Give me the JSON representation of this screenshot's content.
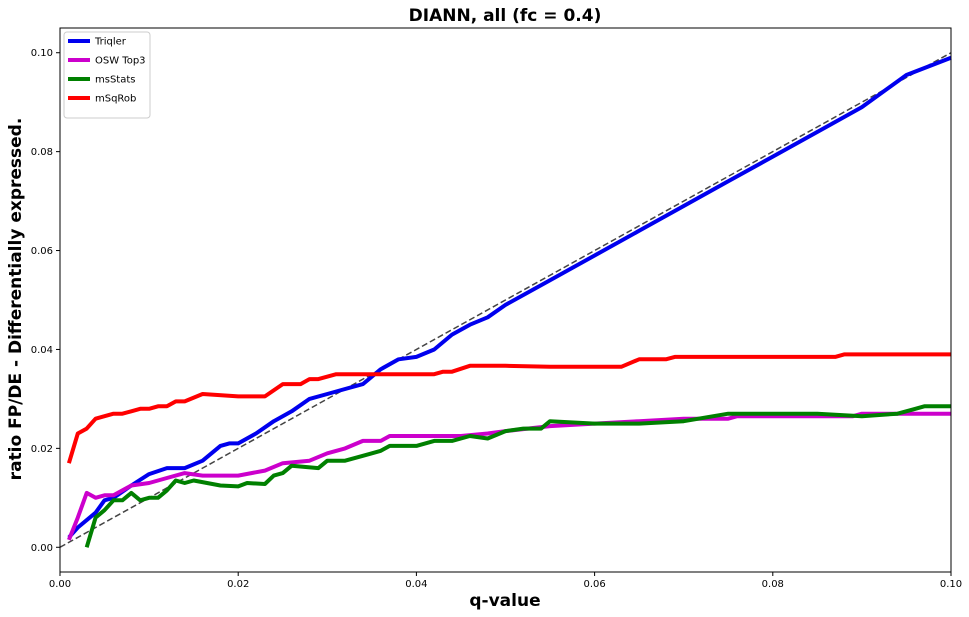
{
  "chart_data": {
    "type": "line",
    "title": "DIANN, all (fc = 0.4)",
    "xlabel": "q-value",
    "ylabel": "ratio FP/DE - Differentially expressed.",
    "xlim": [
      0.0,
      0.1
    ],
    "ylim": [
      -0.005,
      0.105
    ],
    "xticks": [
      "0.00",
      "0.02",
      "0.04",
      "0.06",
      "0.08",
      "0.10"
    ],
    "yticks": [
      "0.00",
      "0.02",
      "0.04",
      "0.06",
      "0.08",
      "0.10"
    ],
    "grid": false,
    "legend_position": "top-left",
    "diagonal": {
      "x": [
        0.0,
        0.1
      ],
      "y": [
        0.0,
        0.1
      ],
      "color": "#444444",
      "style": "dashed"
    },
    "series": [
      {
        "name": "Triqler",
        "color": "#0000ee",
        "x": [
          0.001,
          0.002,
          0.004,
          0.005,
          0.006,
          0.008,
          0.01,
          0.012,
          0.014,
          0.016,
          0.018,
          0.019,
          0.02,
          0.022,
          0.024,
          0.026,
          0.028,
          0.03,
          0.032,
          0.034,
          0.036,
          0.038,
          0.04,
          0.042,
          0.044,
          0.046,
          0.048,
          0.05,
          0.055,
          0.06,
          0.065,
          0.07,
          0.075,
          0.08,
          0.085,
          0.09,
          0.095,
          0.1
        ],
        "y": [
          0.002,
          0.004,
          0.007,
          0.0095,
          0.01,
          0.0125,
          0.0148,
          0.016,
          0.016,
          0.0175,
          0.0205,
          0.021,
          0.021,
          0.023,
          0.0255,
          0.0275,
          0.03,
          0.031,
          0.032,
          0.033,
          0.036,
          0.038,
          0.0385,
          0.04,
          0.043,
          0.045,
          0.0465,
          0.049,
          0.054,
          0.059,
          0.064,
          0.069,
          0.074,
          0.079,
          0.084,
          0.089,
          0.0955,
          0.099
        ]
      },
      {
        "name": "OSW Top3",
        "color": "#cc00cc",
        "x": [
          0.001,
          0.002,
          0.003,
          0.004,
          0.005,
          0.006,
          0.008,
          0.01,
          0.012,
          0.014,
          0.016,
          0.02,
          0.023,
          0.025,
          0.028,
          0.03,
          0.032,
          0.034,
          0.036,
          0.037,
          0.04,
          0.045,
          0.048,
          0.05,
          0.055,
          0.06,
          0.065,
          0.07,
          0.075,
          0.076,
          0.08,
          0.089,
          0.09,
          0.1
        ],
        "y": [
          0.0015,
          0.006,
          0.011,
          0.01,
          0.0105,
          0.0105,
          0.0125,
          0.013,
          0.014,
          0.015,
          0.0145,
          0.0145,
          0.0155,
          0.017,
          0.0175,
          0.019,
          0.02,
          0.0215,
          0.0215,
          0.0225,
          0.0225,
          0.0225,
          0.023,
          0.0235,
          0.0245,
          0.025,
          0.0255,
          0.026,
          0.026,
          0.0265,
          0.0265,
          0.0265,
          0.027,
          0.027
        ]
      },
      {
        "name": "msStats",
        "color": "#008000",
        "x": [
          0.003,
          0.004,
          0.005,
          0.006,
          0.007,
          0.008,
          0.009,
          0.01,
          0.011,
          0.012,
          0.013,
          0.014,
          0.015,
          0.018,
          0.02,
          0.021,
          0.023,
          0.024,
          0.025,
          0.026,
          0.029,
          0.03,
          0.032,
          0.034,
          0.035,
          0.036,
          0.037,
          0.04,
          0.042,
          0.044,
          0.046,
          0.048,
          0.05,
          0.052,
          0.054,
          0.055,
          0.06,
          0.065,
          0.07,
          0.075,
          0.08,
          0.085,
          0.09,
          0.094,
          0.096,
          0.097,
          0.1
        ],
        "y": [
          0.0,
          0.006,
          0.0075,
          0.0095,
          0.0095,
          0.011,
          0.0095,
          0.01,
          0.01,
          0.0115,
          0.0135,
          0.013,
          0.0135,
          0.0125,
          0.0123,
          0.013,
          0.0128,
          0.0145,
          0.015,
          0.0165,
          0.016,
          0.0175,
          0.0175,
          0.0185,
          0.019,
          0.0195,
          0.0205,
          0.0205,
          0.0215,
          0.0215,
          0.0225,
          0.022,
          0.0235,
          0.024,
          0.024,
          0.0255,
          0.025,
          0.025,
          0.0255,
          0.027,
          0.027,
          0.027,
          0.0265,
          0.027,
          0.028,
          0.0285,
          0.0285
        ]
      },
      {
        "name": "mSqRob",
        "color": "#ff0000",
        "x": [
          0.001,
          0.002,
          0.003,
          0.004,
          0.005,
          0.006,
          0.007,
          0.008,
          0.009,
          0.01,
          0.011,
          0.012,
          0.013,
          0.014,
          0.016,
          0.02,
          0.023,
          0.025,
          0.027,
          0.028,
          0.029,
          0.031,
          0.032,
          0.035,
          0.038,
          0.04,
          0.042,
          0.043,
          0.044,
          0.046,
          0.05,
          0.055,
          0.06,
          0.063,
          0.065,
          0.068,
          0.069,
          0.075,
          0.08,
          0.087,
          0.088,
          0.1
        ],
        "y": [
          0.017,
          0.023,
          0.024,
          0.026,
          0.0265,
          0.027,
          0.027,
          0.0275,
          0.028,
          0.028,
          0.0285,
          0.0285,
          0.0295,
          0.0295,
          0.031,
          0.0305,
          0.0305,
          0.033,
          0.033,
          0.034,
          0.034,
          0.035,
          0.035,
          0.035,
          0.035,
          0.035,
          0.035,
          0.0355,
          0.0355,
          0.0367,
          0.0367,
          0.0365,
          0.0365,
          0.0365,
          0.038,
          0.038,
          0.0385,
          0.0385,
          0.0385,
          0.0385,
          0.039,
          0.039
        ]
      }
    ]
  }
}
